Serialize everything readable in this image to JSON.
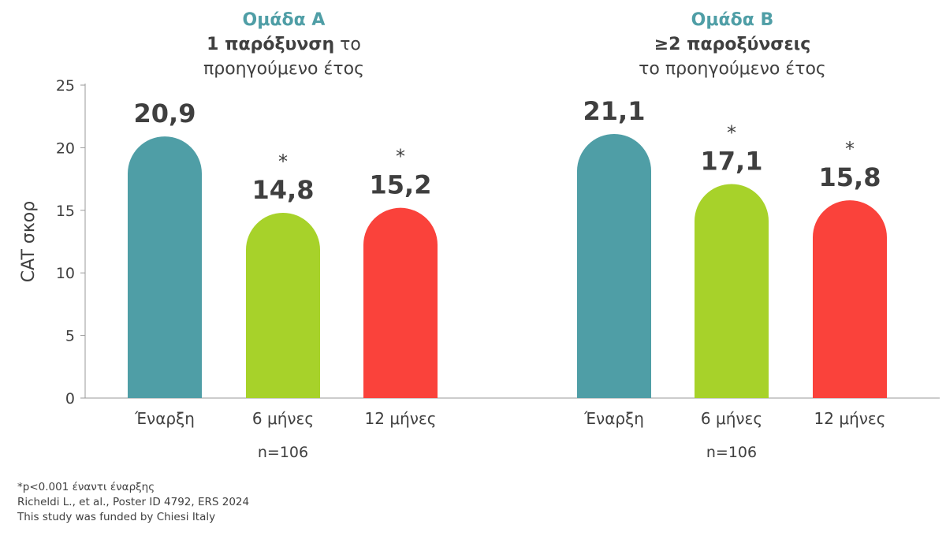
{
  "chart_data": {
    "type": "bar",
    "ylabel": "CAT σκορ",
    "ylim": [
      0,
      25
    ],
    "yticks": [
      "0",
      "5",
      "10",
      "15",
      "20",
      "25"
    ],
    "grid": false,
    "groups": [
      {
        "title": "Ομάδα Α",
        "subtitle_bold": "1 παρόξυνση",
        "subtitle_rest": " το",
        "subtitle_line2": "προηγούμενο έτος",
        "n_label": "n=106",
        "bars": [
          {
            "category": "Έναρξη",
            "value": 20.9,
            "label": "20,9",
            "star": "",
            "color": "#4f9ea6"
          },
          {
            "category": "6 μήνες",
            "value": 14.8,
            "label": "14,8",
            "star": "*",
            "color": "#a7d22a"
          },
          {
            "category": "12 μήνες",
            "value": 15.2,
            "label": "15,2",
            "star": "*",
            "color": "#fa423b"
          }
        ]
      },
      {
        "title": "Ομάδα Β",
        "subtitle_bold": "≥2 παροξύνσεις",
        "subtitle_rest": "",
        "subtitle_line2": "το προηγούμενο έτος",
        "n_label": "n=106",
        "bars": [
          {
            "category": "Έναρξη",
            "value": 21.1,
            "label": "21,1",
            "star": "",
            "color": "#4f9ea6"
          },
          {
            "category": "6 μήνες",
            "value": 17.1,
            "label": "17,1",
            "star": "*",
            "color": "#a7d22a"
          },
          {
            "category": "12 μήνες",
            "value": 15.8,
            "label": "15,8",
            "star": "*",
            "color": "#fa423b"
          }
        ]
      }
    ]
  },
  "footnotes": [
    "*p<0.001 έναντι έναρξης",
    "Richeldi L., et al., Poster ID 4792, ERS 2024",
    "This study was funded by Chiesi Italy"
  ]
}
